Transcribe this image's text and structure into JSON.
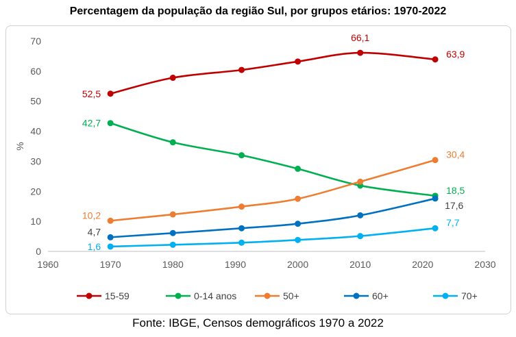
{
  "title": "Percentagem da população da região Sul, por grupos etários: 1970-2022",
  "source": "Fonte: IBGE, Censos demográficos 1970 a 2022",
  "chart_data": {
    "type": "line",
    "title": "Percentagem da população da região Sul, por grupos etários: 1970-2022",
    "xlabel": "",
    "ylabel": "%",
    "xlim": [
      1960,
      2030
    ],
    "ylim": [
      0,
      70
    ],
    "xticks": [
      1960,
      1970,
      1980,
      1990,
      2000,
      2010,
      2020,
      2030
    ],
    "yticks": [
      0,
      10,
      20,
      30,
      40,
      50,
      60,
      70
    ],
    "grid": false,
    "legend": "bottom",
    "x": [
      1970,
      1980,
      1991,
      2000,
      2010,
      2022
    ],
    "series": [
      {
        "name": "15-59",
        "color": "#c00000",
        "values": [
          52.5,
          57.8,
          60.4,
          63.2,
          66.1,
          63.9
        ],
        "labels": [
          {
            "index": 0,
            "text": "52,5",
            "pos": "left"
          },
          {
            "index": 4,
            "text": "66,1",
            "pos": "top"
          },
          {
            "index": 5,
            "text": "63,9",
            "pos": "right"
          }
        ]
      },
      {
        "name": "0-14 anos",
        "color": "#00b050",
        "values": [
          42.7,
          36.3,
          32.0,
          27.5,
          21.9,
          18.5
        ],
        "labels": [
          {
            "index": 0,
            "text": "42,7",
            "pos": "left"
          },
          {
            "index": 5,
            "text": "18,5",
            "pos": "right"
          }
        ]
      },
      {
        "name": "50+",
        "color": "#ed7d31",
        "values": [
          10.2,
          12.3,
          14.9,
          17.5,
          23.2,
          30.4
        ],
        "labels": [
          {
            "index": 0,
            "text": "10,2",
            "pos": "left-up"
          },
          {
            "index": 5,
            "text": "30,4",
            "pos": "right"
          }
        ]
      },
      {
        "name": "60+",
        "color": "#0070c0",
        "values": [
          4.7,
          6.1,
          7.7,
          9.2,
          12.0,
          17.6
        ],
        "labels": [
          {
            "index": 0,
            "text": "4,7",
            "pos": "left-up",
            "color": "#404040"
          },
          {
            "index": 5,
            "text": "17,6",
            "pos": "right-down",
            "color": "#404040"
          }
        ]
      },
      {
        "name": "70+",
        "color": "#00b0f0",
        "values": [
          1.6,
          2.2,
          2.9,
          3.8,
          5.1,
          7.7
        ],
        "labels": [
          {
            "index": 0,
            "text": "1,6",
            "pos": "left"
          },
          {
            "index": 5,
            "text": "7,7",
            "pos": "right"
          }
        ]
      }
    ]
  }
}
